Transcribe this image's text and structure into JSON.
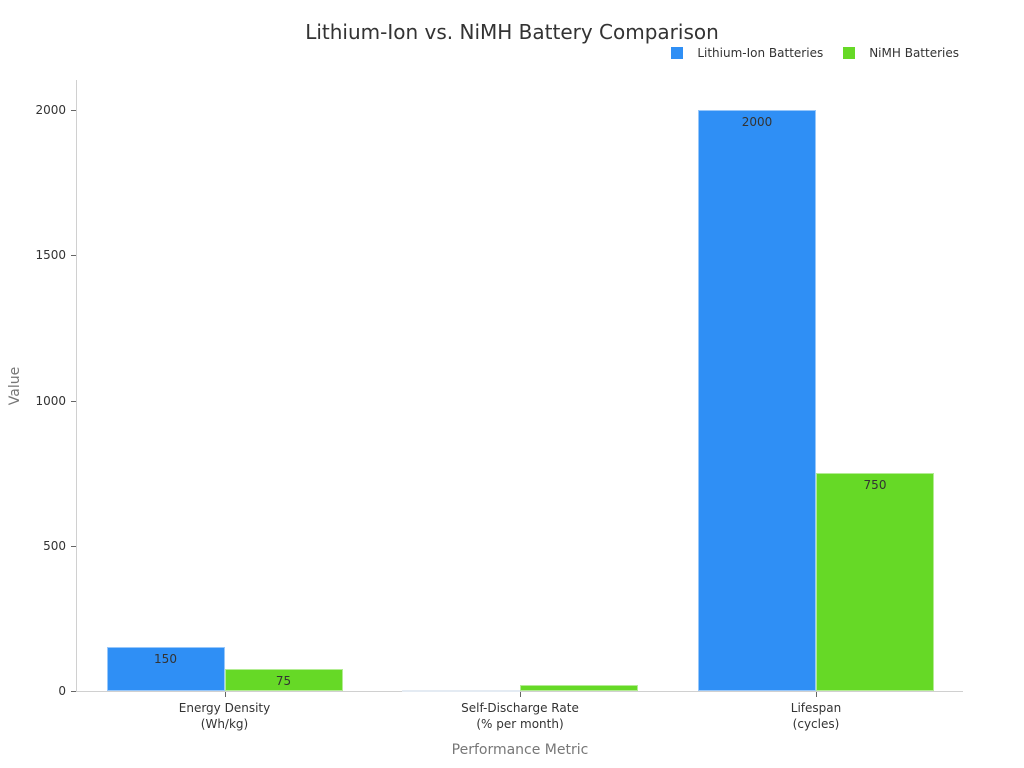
{
  "chart_data": {
    "type": "bar",
    "title": "Lithium-Ion vs. NiMH Battery Comparison",
    "xlabel": "Performance Metric",
    "ylabel": "Value",
    "categories": [
      "Energy Density\n(Wh/kg)",
      "Self-Discharge Rate\n(% per month)",
      "Lifespan\n(cycles)"
    ],
    "category_lines": [
      [
        "Energy Density",
        "(Wh/kg)"
      ],
      [
        "Self-Discharge Rate",
        "(% per month)"
      ],
      [
        "Lifespan",
        "(cycles)"
      ]
    ],
    "series": [
      {
        "name": "Lithium-Ion Batteries",
        "color": "#2f8ff5",
        "values": [
          150,
          2,
          2000
        ],
        "labels": [
          "150",
          "",
          "2000"
        ]
      },
      {
        "name": "NiMH Batteries",
        "color": "#66d926",
        "values": [
          75,
          20,
          750
        ],
        "labels": [
          "75",
          "",
          "750"
        ]
      }
    ],
    "ylim": [
      0,
      2100
    ],
    "yticks": [
      0,
      500,
      1000,
      1500,
      2000
    ],
    "ytick_labels": [
      "0",
      "500",
      "1000",
      "1500",
      "2000"
    ],
    "grid": false,
    "legend_position": "top-right"
  }
}
